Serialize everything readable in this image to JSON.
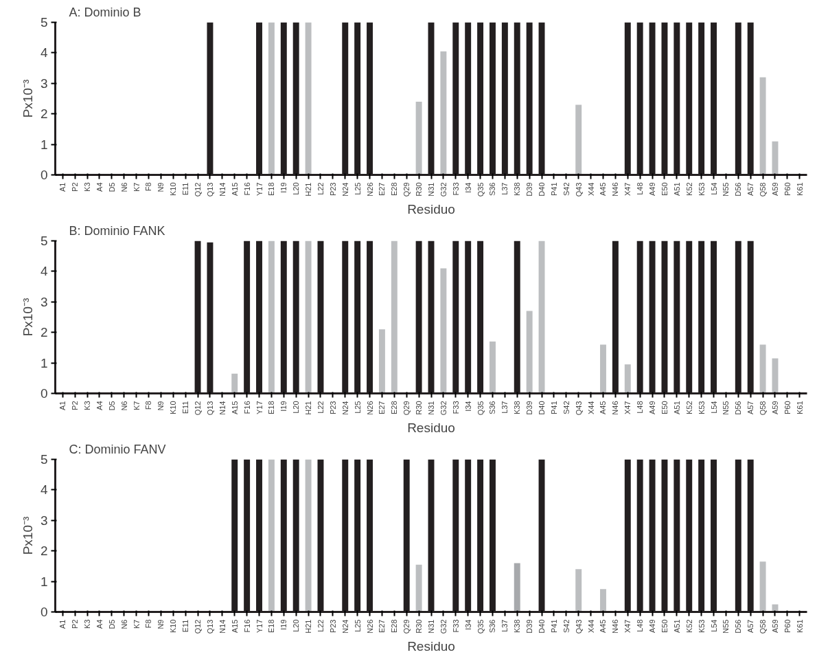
{
  "chart_data": [
    {
      "type": "bar",
      "title": "A: Dominio B",
      "xlabel": "Residuo",
      "ylabel": "Px10⁻³",
      "ylim": [
        0,
        5
      ],
      "yticks": [
        0,
        1,
        2,
        3,
        4,
        5
      ],
      "grid": false,
      "categories": [
        "A1",
        "P2",
        "K3",
        "A4",
        "D5",
        "N6",
        "K7",
        "F8",
        "N9",
        "K10",
        "E11",
        "Q12",
        "Q13",
        "N14",
        "A15",
        "F16",
        "Y17",
        "E18",
        "I19",
        "L20",
        "H21",
        "L22",
        "P23",
        "N24",
        "L25",
        "N26",
        "E27",
        "E28",
        "Q29",
        "R30",
        "N31",
        "G32",
        "F33",
        "I34",
        "Q35",
        "S36",
        "L37",
        "K38",
        "D39",
        "D40",
        "P41",
        "S42",
        "Q43",
        "X44",
        "A45",
        "N46",
        "X47",
        "L48",
        "A49",
        "E50",
        "A51",
        "K52",
        "K53",
        "L54",
        "N55",
        "D56",
        "A57",
        "Q58",
        "A59",
        "P60",
        "K61"
      ],
      "values": [
        null,
        null,
        null,
        null,
        null,
        null,
        null,
        null,
        null,
        null,
        null,
        null,
        5,
        null,
        null,
        null,
        5,
        5,
        5,
        5,
        5,
        null,
        null,
        5,
        5,
        5,
        null,
        null,
        null,
        2.4,
        5,
        4.05,
        5,
        5,
        5,
        5,
        5,
        5,
        5,
        5,
        null,
        null,
        2.3,
        null,
        null,
        null,
        5,
        5,
        5,
        5,
        5,
        5,
        5,
        5,
        null,
        5,
        5,
        3.2,
        1.1,
        null,
        null
      ],
      "colors": [
        null,
        null,
        null,
        null,
        null,
        null,
        null,
        null,
        null,
        null,
        null,
        null,
        "#231f20",
        null,
        null,
        null,
        "#231f20",
        "#bcbec0",
        "#231f20",
        "#231f20",
        "#bcbec0",
        null,
        null,
        "#231f20",
        "#231f20",
        "#231f20",
        null,
        null,
        null,
        "#bcbec0",
        "#231f20",
        "#bcbec0",
        "#231f20",
        "#231f20",
        "#231f20",
        "#231f20",
        "#231f20",
        "#231f20",
        "#231f20",
        "#231f20",
        null,
        null,
        "#bcbec0",
        null,
        null,
        null,
        "#231f20",
        "#231f20",
        "#231f20",
        "#231f20",
        "#231f20",
        "#231f20",
        "#231f20",
        "#231f20",
        null,
        "#231f20",
        "#231f20",
        "#bcbec0",
        "#bcbec0",
        null,
        null
      ]
    },
    {
      "type": "bar",
      "title": "B: Dominio FANK",
      "xlabel": "Residuo",
      "ylabel": "Px10⁻³",
      "ylim": [
        0,
        5
      ],
      "yticks": [
        0,
        1,
        2,
        3,
        4,
        5
      ],
      "grid": false,
      "categories": [
        "A1",
        "P2",
        "K3",
        "A4",
        "D5",
        "N6",
        "K7",
        "F8",
        "N9",
        "K10",
        "E11",
        "Q12",
        "Q13",
        "N14",
        "A15",
        "F16",
        "Y17",
        "E18",
        "I19",
        "L20",
        "H21",
        "L22",
        "P23",
        "N24",
        "L25",
        "N26",
        "E27",
        "E28",
        "Q29",
        "R30",
        "N31",
        "G32",
        "F33",
        "I34",
        "Q35",
        "S36",
        "L37",
        "K38",
        "D39",
        "D40",
        "P41",
        "S42",
        "Q43",
        "X44",
        "A45",
        "N46",
        "X47",
        "L48",
        "A49",
        "E50",
        "A51",
        "K52",
        "K53",
        "L54",
        "N55",
        "D56",
        "A57",
        "Q58",
        "A59",
        "P60",
        "K61"
      ],
      "values": [
        null,
        null,
        null,
        null,
        null,
        null,
        null,
        null,
        null,
        null,
        null,
        5,
        4.95,
        null,
        0.65,
        5,
        5,
        5,
        5,
        5,
        5,
        5,
        null,
        5,
        5,
        5,
        2.1,
        5,
        null,
        5,
        5,
        4.1,
        5,
        5,
        5,
        1.7,
        null,
        5,
        2.7,
        5,
        null,
        null,
        null,
        null,
        1.6,
        5,
        0.95,
        5,
        5,
        5,
        5,
        5,
        5,
        5,
        null,
        5,
        5,
        1.6,
        1.15,
        null,
        null
      ],
      "colors": [
        null,
        null,
        null,
        null,
        null,
        null,
        null,
        null,
        null,
        null,
        null,
        "#231f20",
        "#231f20",
        null,
        "#bcbec0",
        "#231f20",
        "#231f20",
        "#bcbec0",
        "#231f20",
        "#231f20",
        "#bcbec0",
        "#231f20",
        null,
        "#231f20",
        "#231f20",
        "#231f20",
        "#bcbec0",
        "#bcbec0",
        null,
        "#231f20",
        "#231f20",
        "#bcbec0",
        "#231f20",
        "#231f20",
        "#231f20",
        "#bcbec0",
        null,
        "#231f20",
        "#bcbec0",
        "#bcbec0",
        null,
        null,
        null,
        null,
        "#bcbec0",
        "#231f20",
        "#bcbec0",
        "#231f20",
        "#231f20",
        "#231f20",
        "#231f20",
        "#231f20",
        "#231f20",
        "#231f20",
        null,
        "#231f20",
        "#231f20",
        "#bcbec0",
        "#bcbec0",
        null,
        null
      ]
    },
    {
      "type": "bar",
      "title": "C: Dominio FANV",
      "xlabel": "Residuo",
      "ylabel": "Px10⁻³",
      "ylim": [
        0,
        5
      ],
      "yticks": [
        0,
        1,
        2,
        3,
        4,
        5
      ],
      "grid": false,
      "categories": [
        "A1",
        "P2",
        "K3",
        "A4",
        "D5",
        "N6",
        "K7",
        "F8",
        "N9",
        "K10",
        "E11",
        "Q12",
        "Q13",
        "N14",
        "A15",
        "F16",
        "Y17",
        "E18",
        "I19",
        "L20",
        "H21",
        "L22",
        "P23",
        "N24",
        "L25",
        "N26",
        "E27",
        "E28",
        "Q29",
        "R30",
        "N31",
        "G32",
        "F33",
        "I34",
        "Q35",
        "S36",
        "L37",
        "K38",
        "D39",
        "D40",
        "P41",
        "S42",
        "Q43",
        "X44",
        "A45",
        "N46",
        "X47",
        "L48",
        "A49",
        "E50",
        "A51",
        "K52",
        "K53",
        "L54",
        "N55",
        "D56",
        "A57",
        "Q58",
        "A59",
        "P60",
        "K61"
      ],
      "values": [
        null,
        null,
        null,
        null,
        null,
        null,
        null,
        null,
        null,
        null,
        null,
        null,
        null,
        null,
        5,
        5,
        5,
        5,
        5,
        5,
        5,
        5,
        null,
        5,
        5,
        5,
        null,
        null,
        5,
        1.55,
        5,
        null,
        5,
        5,
        5,
        5,
        null,
        1.6,
        null,
        5,
        null,
        null,
        1.4,
        null,
        0.75,
        null,
        5,
        5,
        5,
        5,
        5,
        5,
        5,
        5,
        null,
        5,
        5,
        1.65,
        0.25,
        null,
        null
      ],
      "colors": [
        null,
        null,
        null,
        null,
        null,
        null,
        null,
        null,
        null,
        null,
        null,
        null,
        null,
        null,
        "#231f20",
        "#231f20",
        "#231f20",
        "#bcbec0",
        "#231f20",
        "#231f20",
        "#bcbec0",
        "#231f20",
        null,
        "#231f20",
        "#231f20",
        "#231f20",
        null,
        null,
        "#231f20",
        "#bcbec0",
        "#231f20",
        null,
        "#231f20",
        "#231f20",
        "#231f20",
        "#231f20",
        null,
        "#a7a9ac",
        null,
        "#231f20",
        null,
        null,
        "#bcbec0",
        null,
        "#bcbec0",
        null,
        "#231f20",
        "#231f20",
        "#231f20",
        "#231f20",
        "#231f20",
        "#231f20",
        "#231f20",
        "#231f20",
        null,
        "#231f20",
        "#231f20",
        "#bcbec0",
        "#bcbec0",
        null,
        null
      ]
    }
  ]
}
